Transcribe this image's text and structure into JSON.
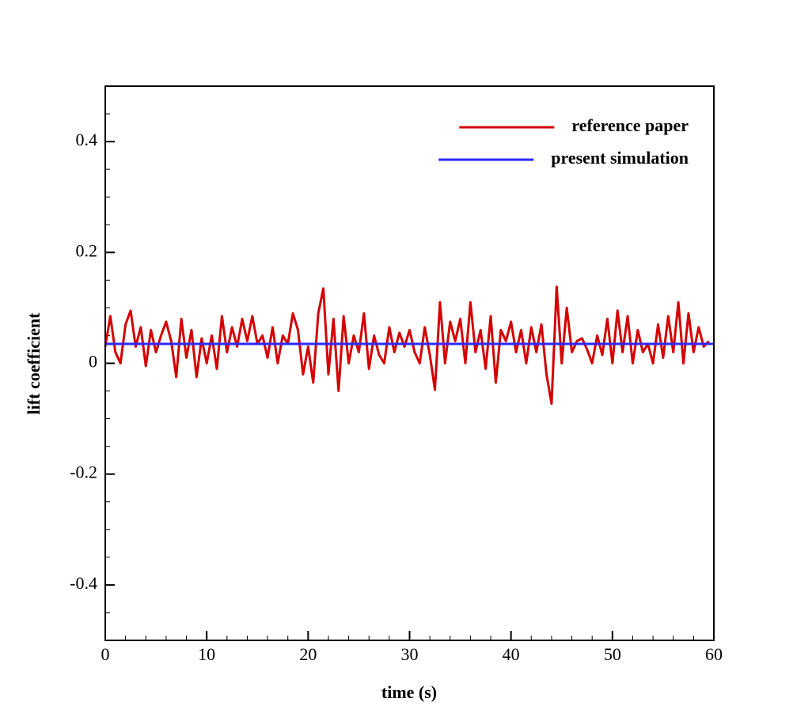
{
  "chart_data": {
    "type": "line",
    "xlabel": "time (s)",
    "ylabel": "lift coefficient",
    "x": [
      0,
      0.5,
      1,
      1.5,
      2,
      2.5,
      3,
      3.5,
      4,
      4.5,
      5,
      5.5,
      6,
      6.5,
      7,
      7.5,
      8,
      8.5,
      9,
      9.5,
      10,
      10.5,
      11,
      11.5,
      12,
      12.5,
      13,
      13.5,
      14,
      14.5,
      15,
      15.5,
      16,
      16.5,
      17,
      17.5,
      18,
      18.5,
      19,
      19.5,
      20,
      20.5,
      21,
      21.5,
      22,
      22.5,
      23,
      23.5,
      24,
      24.5,
      25,
      25.5,
      26,
      26.5,
      27,
      27.5,
      28,
      28.5,
      29,
      29.5,
      30,
      30.5,
      31,
      31.5,
      32,
      32.5,
      33,
      33.5,
      34,
      34.5,
      35,
      35.5,
      36,
      36.5,
      37,
      37.5,
      38,
      38.5,
      39,
      39.5,
      40,
      40.5,
      41,
      41.5,
      42,
      42.5,
      43,
      43.5,
      44,
      44.5,
      45,
      45.5,
      46,
      46.5,
      47,
      47.5,
      48,
      48.5,
      49,
      49.5,
      50,
      50.5,
      51,
      51.5,
      52,
      52.5,
      53,
      53.5,
      54,
      54.5,
      55,
      55.5,
      56,
      56.5,
      57,
      57.5,
      58,
      58.5,
      59,
      59.5
    ],
    "series": [
      {
        "name": "reference paper",
        "color": "#d40000",
        "values": [
          0.03,
          0.085,
          0.02,
          0.0,
          0.07,
          0.095,
          0.03,
          0.065,
          -0.005,
          0.06,
          0.02,
          0.05,
          0.075,
          0.04,
          -0.025,
          0.08,
          0.01,
          0.06,
          -0.025,
          0.045,
          0.0,
          0.05,
          -0.01,
          0.085,
          0.02,
          0.065,
          0.03,
          0.08,
          0.04,
          0.085,
          0.035,
          0.05,
          0.01,
          0.065,
          0.0,
          0.05,
          0.035,
          0.09,
          0.06,
          -0.02,
          0.03,
          -0.035,
          0.09,
          0.135,
          -0.02,
          0.08,
          -0.05,
          0.085,
          0.0,
          0.05,
          0.02,
          0.09,
          -0.01,
          0.05,
          0.015,
          0.0,
          0.065,
          0.02,
          0.055,
          0.03,
          0.06,
          0.02,
          0.0,
          0.065,
          0.015,
          -0.048,
          0.11,
          0.0,
          0.075,
          0.04,
          0.08,
          0.0,
          0.11,
          0.02,
          0.06,
          -0.01,
          0.085,
          -0.035,
          0.06,
          0.04,
          0.075,
          0.02,
          0.06,
          0.0,
          0.065,
          0.02,
          0.07,
          -0.02,
          -0.073,
          0.138,
          0.0,
          0.1,
          0.02,
          0.04,
          0.045,
          0.025,
          0.0,
          0.05,
          0.015,
          0.08,
          0.0,
          0.095,
          0.02,
          0.085,
          0.0,
          0.06,
          0.02,
          0.035,
          0.0,
          0.07,
          0.01,
          0.085,
          0.02,
          0.11,
          0.0,
          0.09,
          0.02,
          0.065,
          0.03,
          0.04
        ]
      },
      {
        "name": "present simulation",
        "color": "#2a2aff",
        "x": [
          0,
          60
        ],
        "values": [
          0.035,
          0.035
        ]
      }
    ],
    "xlim": [
      0,
      60
    ],
    "xticks": [
      0,
      10,
      20,
      30,
      40,
      50,
      60
    ],
    "xminorticks": [
      2,
      4,
      6,
      8,
      12,
      14,
      16,
      18,
      22,
      24,
      26,
      28,
      32,
      34,
      36,
      38,
      42,
      44,
      46,
      48,
      52,
      54,
      56,
      58
    ],
    "ylim": [
      -0.5,
      0.5
    ],
    "yticks": [
      -0.4,
      -0.2,
      0,
      0.2,
      0.4
    ],
    "yminorticks": [
      -0.45,
      -0.35,
      -0.3,
      -0.25,
      -0.15,
      -0.1,
      -0.05,
      0.05,
      0.1,
      0.15,
      0.25,
      0.3,
      0.35,
      0.45
    ],
    "legend": "upper right"
  }
}
